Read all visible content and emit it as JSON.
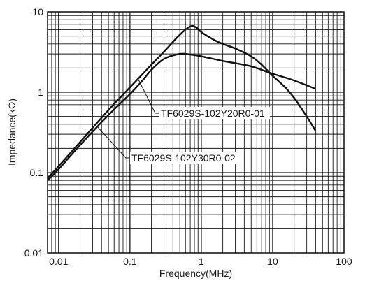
{
  "chart_data": {
    "type": "line",
    "xlabel": "Frequency(MHz)",
    "ylabel": "Impedance(kΩ)",
    "x_scale": "log",
    "y_scale": "log",
    "xlim": [
      0.007,
      100
    ],
    "ylim": [
      0.01,
      10
    ],
    "x_ticks": [
      "0.01",
      "0.1",
      "1",
      "10",
      "100"
    ],
    "y_ticks": [
      "0.01",
      "0.1",
      "1",
      "10"
    ],
    "grid": true,
    "series": [
      {
        "name": "TF6029S-102Y20R0-01",
        "x": [
          0.007,
          0.01,
          0.02,
          0.05,
          0.1,
          0.2,
          0.3,
          0.5,
          0.7,
          0.85,
          1,
          1.5,
          2,
          3,
          5,
          7,
          10,
          15,
          20,
          30,
          40
        ],
        "y": [
          0.085,
          0.12,
          0.24,
          0.6,
          1.15,
          2.2,
          3.2,
          5.2,
          6.6,
          6.4,
          5.6,
          4.5,
          4.0,
          3.5,
          2.8,
          2.2,
          1.6,
          1.15,
          0.85,
          0.5,
          0.33
        ]
      },
      {
        "name": "TF6029S-102Y30R0-02",
        "x": [
          0.007,
          0.01,
          0.02,
          0.05,
          0.1,
          0.15,
          0.2,
          0.3,
          0.5,
          0.7,
          1,
          2,
          3,
          5,
          7,
          10,
          20,
          40
        ],
        "y": [
          0.08,
          0.11,
          0.22,
          0.52,
          0.95,
          1.4,
          1.9,
          2.6,
          3.0,
          2.95,
          2.8,
          2.45,
          2.3,
          2.1,
          1.9,
          1.7,
          1.4,
          1.1
        ]
      }
    ],
    "annotations": [
      {
        "text": "TF6029S-102Y20R0-01",
        "series": 0,
        "x": 0.13
      },
      {
        "text": "TF6029S-102Y30R0-02",
        "series": 1,
        "x": 0.035
      }
    ]
  }
}
